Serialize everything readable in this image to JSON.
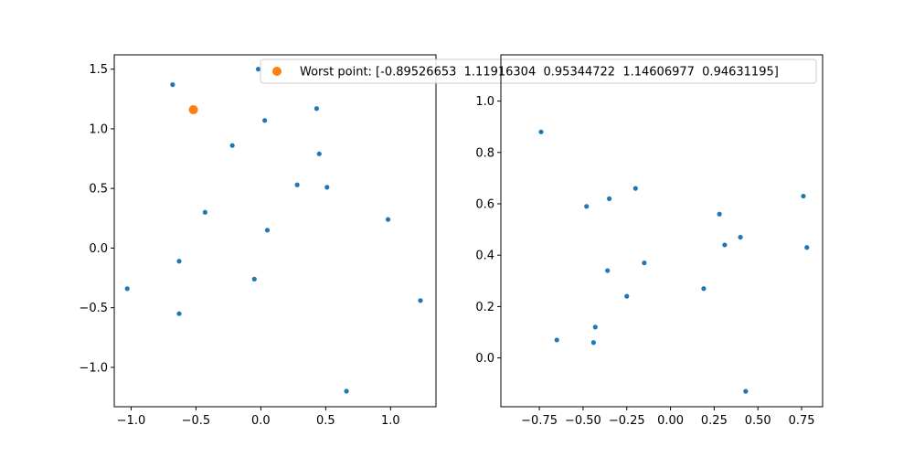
{
  "chart_data": [
    {
      "type": "scatter",
      "xlim": [
        -1.13,
        1.35
      ],
      "ylim": [
        -1.33,
        1.62
      ],
      "xticks": [
        -1.0,
        -0.5,
        0.0,
        0.5,
        1.0
      ],
      "xtick_labels": [
        "−1.0",
        "−0.5",
        "0.0",
        "0.5",
        "1.0"
      ],
      "yticks": [
        -1.0,
        -0.5,
        0.0,
        0.5,
        1.0,
        1.5
      ],
      "ytick_labels": [
        "−1.0",
        "−0.5",
        "0.0",
        "0.5",
        "1.0",
        "1.5"
      ],
      "grid": false,
      "legend_placement": "upper-right",
      "series": [
        {
          "color": "#1f77b4",
          "marker_size": "small",
          "points": [
            {
              "x": -0.68,
              "y": 1.37
            },
            {
              "x": -0.02,
              "y": 1.5
            },
            {
              "x": 0.43,
              "y": 1.17
            },
            {
              "x": 0.03,
              "y": 1.07
            },
            {
              "x": -0.22,
              "y": 0.86
            },
            {
              "x": 0.45,
              "y": 0.79
            },
            {
              "x": 0.28,
              "y": 0.53
            },
            {
              "x": 0.51,
              "y": 0.51
            },
            {
              "x": -0.43,
              "y": 0.3
            },
            {
              "x": 0.98,
              "y": 0.24
            },
            {
              "x": 0.05,
              "y": 0.15
            },
            {
              "x": -0.63,
              "y": -0.11
            },
            {
              "x": -0.05,
              "y": -0.26
            },
            {
              "x": -1.03,
              "y": -0.34
            },
            {
              "x": 1.23,
              "y": -0.44
            },
            {
              "x": -0.63,
              "y": -0.55
            },
            {
              "x": 0.66,
              "y": -1.2
            }
          ]
        },
        {
          "name": "Worst point: [-0.89526653  1.11916304  0.95344722  1.14606977  0.94631195]",
          "color": "#ff7f0e",
          "marker_size": "large",
          "points": [
            {
              "x": -0.52,
              "y": 1.16
            }
          ]
        }
      ]
    },
    {
      "type": "scatter",
      "xlim": [
        -0.97,
        0.87
      ],
      "ylim": [
        -0.19,
        1.18
      ],
      "xticks": [
        -0.75,
        -0.5,
        -0.25,
        0.0,
        0.25,
        0.5,
        0.75
      ],
      "xtick_labels": [
        "−0.75",
        "−0.50",
        "−0.25",
        "0.00",
        "0.25",
        "0.50",
        "0.75"
      ],
      "yticks": [
        0.0,
        0.2,
        0.4,
        0.6,
        0.8,
        1.0
      ],
      "ytick_labels": [
        "0.0",
        "0.2",
        "0.4",
        "0.6",
        "0.8",
        "1.0"
      ],
      "grid": false,
      "series": [
        {
          "color": "#1f77b4",
          "marker_size": "small",
          "points": [
            {
              "x": -0.74,
              "y": 0.88
            },
            {
              "x": -0.2,
              "y": 0.66
            },
            {
              "x": -0.35,
              "y": 0.62
            },
            {
              "x": -0.48,
              "y": 0.59
            },
            {
              "x": 0.76,
              "y": 0.63
            },
            {
              "x": 0.28,
              "y": 0.56
            },
            {
              "x": 0.4,
              "y": 0.47
            },
            {
              "x": 0.31,
              "y": 0.44
            },
            {
              "x": 0.78,
              "y": 0.43
            },
            {
              "x": -0.15,
              "y": 0.37
            },
            {
              "x": -0.36,
              "y": 0.34
            },
            {
              "x": 0.19,
              "y": 0.27
            },
            {
              "x": -0.25,
              "y": 0.24
            },
            {
              "x": -0.43,
              "y": 0.12
            },
            {
              "x": -0.65,
              "y": 0.07
            },
            {
              "x": -0.44,
              "y": 0.06
            },
            {
              "x": 0.43,
              "y": -0.13
            }
          ]
        }
      ]
    }
  ]
}
